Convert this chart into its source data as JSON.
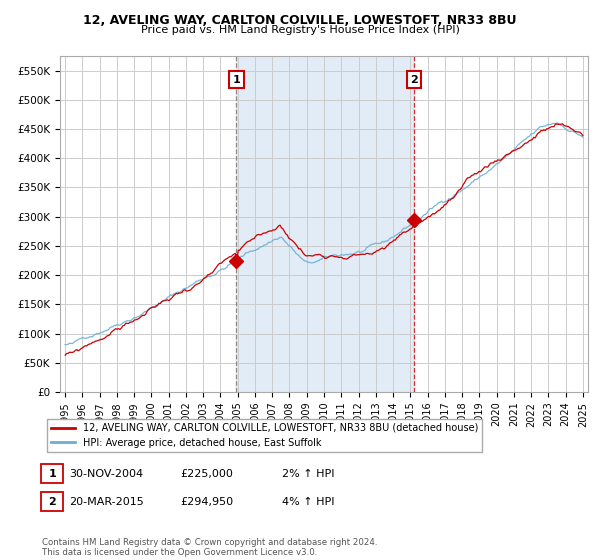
{
  "title_line1": "12, AVELING WAY, CARLTON COLVILLE, LOWESTOFT, NR33 8BU",
  "title_line2": "Price paid vs. HM Land Registry's House Price Index (HPI)",
  "ylim": [
    0,
    575000
  ],
  "yticks": [
    0,
    50000,
    100000,
    150000,
    200000,
    250000,
    300000,
    350000,
    400000,
    450000,
    500000,
    550000
  ],
  "ytick_labels": [
    "£0",
    "£50K",
    "£100K",
    "£150K",
    "£200K",
    "£250K",
    "£300K",
    "£350K",
    "£400K",
    "£450K",
    "£500K",
    "£550K"
  ],
  "hpi_color": "#6baed6",
  "price_color": "#cc0000",
  "marker1_x": 2004.92,
  "marker1_y": 225000,
  "marker1_label": "1",
  "marker1_date": "30-NOV-2004",
  "marker1_price": "£225,000",
  "marker1_hpi": "2% ↑ HPI",
  "marker2_x": 2015.22,
  "marker2_y": 294950,
  "marker2_label": "2",
  "marker2_date": "20-MAR-2015",
  "marker2_price": "£294,950",
  "marker2_hpi": "4% ↑ HPI",
  "legend_line1": "12, AVELING WAY, CARLTON COLVILLE, LOWESTOFT, NR33 8BU (detached house)",
  "legend_line2": "HPI: Average price, detached house, East Suffolk",
  "footer": "Contains HM Land Registry data © Crown copyright and database right 2024.\nThis data is licensed under the Open Government Licence v3.0.",
  "bg_shaded_x1": 2004.92,
  "bg_shaded_x2": 2015.22,
  "xlim_left": 1994.7,
  "xlim_right": 2025.3
}
